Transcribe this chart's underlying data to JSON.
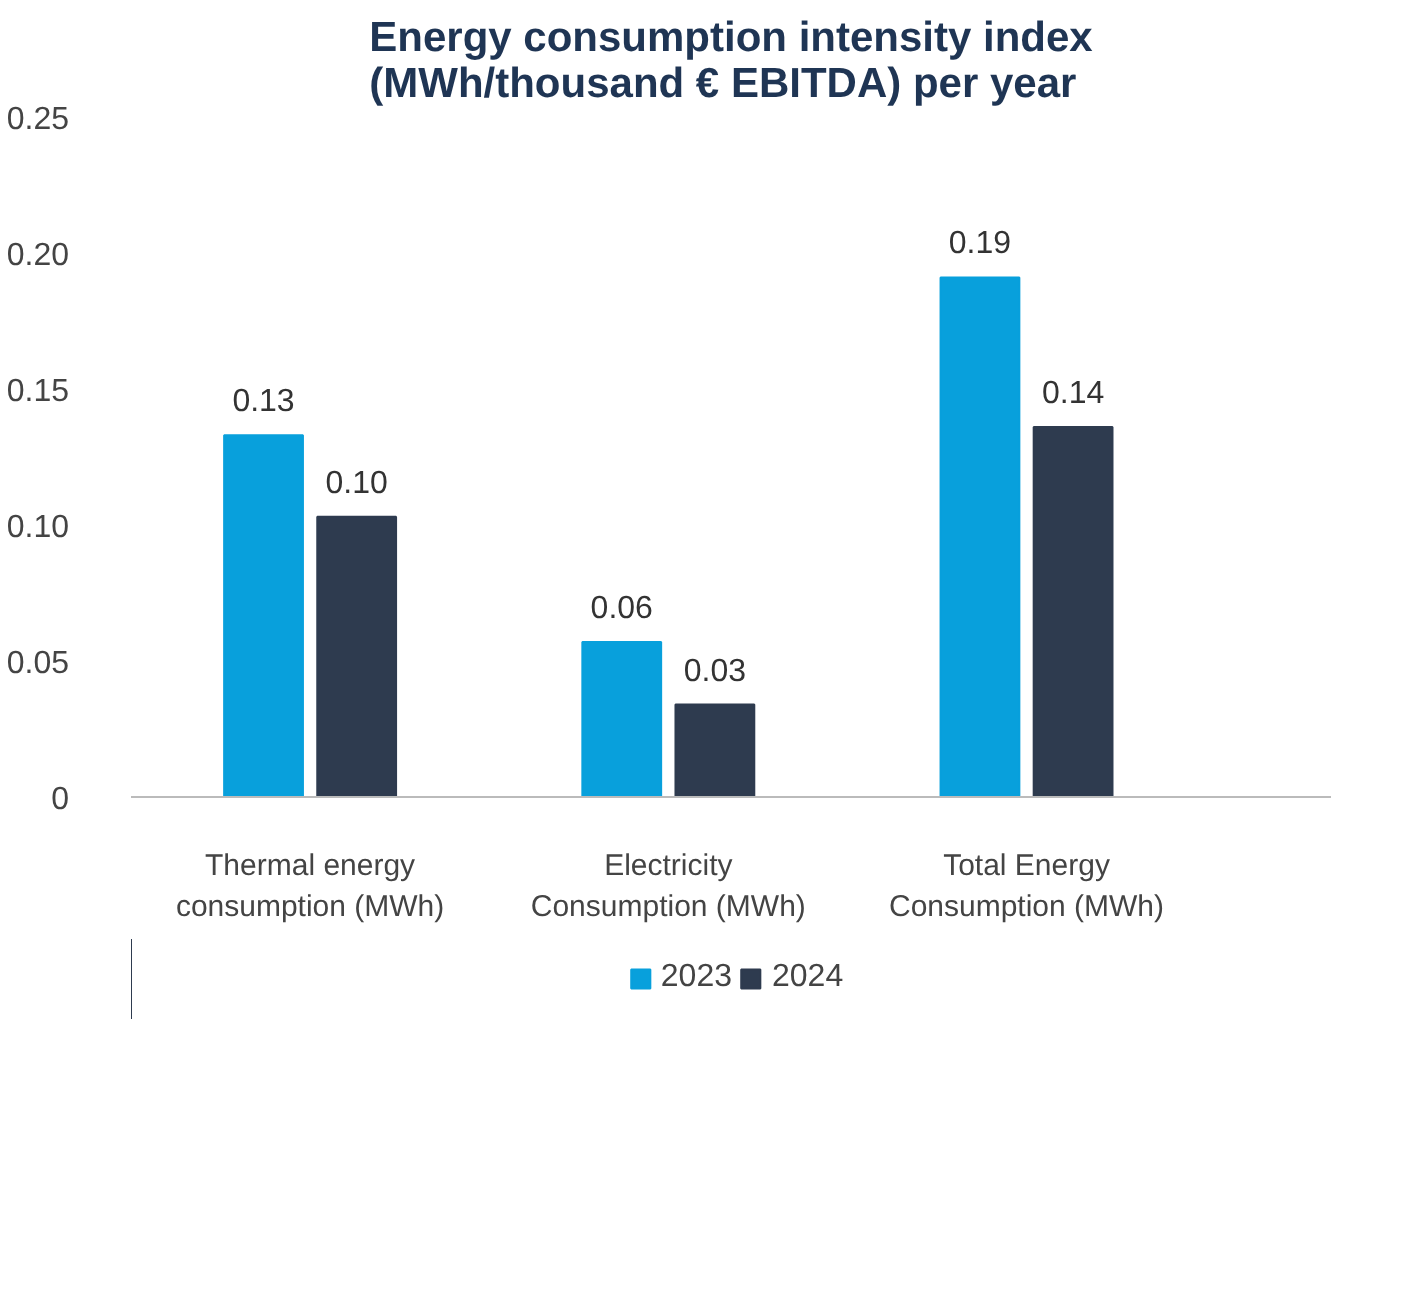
{
  "chart_data": {
    "type": "bar",
    "title": "Energy consumption intensity index (MWh/thousand € EBITDA) per year",
    "categories": [
      "Thermal energy consumption (MWh)",
      "Electricity Consumption (MWh)",
      "Total Energy Consumption (MWh)"
    ],
    "series": [
      {
        "name": "2023",
        "color": "#08a0dc",
        "values": [
          0.133,
          0.057,
          0.191
        ],
        "value_labels": [
          "0.13",
          "0.06",
          "0.19"
        ]
      },
      {
        "name": "2024",
        "color": "#2e3b4f",
        "values": [
          0.103,
          0.034,
          0.136
        ],
        "value_labels": [
          "0.10",
          "0.03",
          "0.14"
        ]
      }
    ],
    "ylim": [
      0,
      0.25
    ],
    "yticks": [
      {
        "value": 0,
        "label": "0"
      },
      {
        "value": 0.05,
        "label": "0.05"
      },
      {
        "value": 0.1,
        "label": "0.10"
      },
      {
        "value": 0.15,
        "label": "0.15"
      },
      {
        "value": 0.2,
        "label": "0.20"
      },
      {
        "value": 0.25,
        "label": "0.25"
      }
    ],
    "grid": false,
    "legend": "bottom"
  }
}
